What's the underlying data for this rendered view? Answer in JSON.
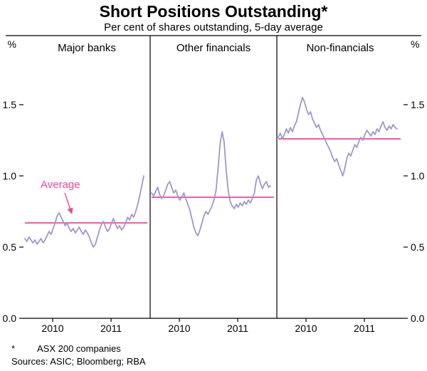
{
  "header": {
    "title": "Short Positions Outstanding*",
    "subtitle": "Per cent of shares outstanding, 5-day average"
  },
  "footer": {
    "marker": "*",
    "note": "ASX 200 companies",
    "sources": "Sources: ASIC; Bloomberg; RBA"
  },
  "colors": {
    "series": "#9b98cc",
    "average": "#f0459b",
    "axis": "#000000",
    "text": "#000000"
  },
  "chart_data": {
    "type": "line",
    "unit_left": "%",
    "unit_right": "%",
    "yticks": [
      0.0,
      0.5,
      1.0,
      1.5
    ],
    "ytick_labels": [
      "0.0",
      "0.5",
      "1.0",
      "1.5"
    ],
    "ylim": [
      0,
      1.96
    ],
    "x_range": [
      2009.5,
      2011.67
    ],
    "year_positions": [
      2010.0,
      2011.0
    ],
    "year_labels": [
      "2010",
      "2011"
    ],
    "annotation": {
      "text": "Average",
      "panel": 0
    },
    "panels": [
      {
        "label": "Major banks",
        "average": 0.67,
        "values": [
          0.56,
          0.54,
          0.57,
          0.55,
          0.53,
          0.55,
          0.52,
          0.54,
          0.56,
          0.53,
          0.55,
          0.58,
          0.61,
          0.59,
          0.63,
          0.67,
          0.72,
          0.74,
          0.71,
          0.68,
          0.65,
          0.67,
          0.63,
          0.61,
          0.63,
          0.6,
          0.62,
          0.64,
          0.61,
          0.59,
          0.62,
          0.6,
          0.57,
          0.53,
          0.5,
          0.52,
          0.57,
          0.62,
          0.66,
          0.68,
          0.64,
          0.61,
          0.63,
          0.67,
          0.7,
          0.66,
          0.63,
          0.65,
          0.62,
          0.64,
          0.67,
          0.71,
          0.69,
          0.73,
          0.71,
          0.75,
          0.8,
          0.86,
          0.93,
          1.0
        ]
      },
      {
        "label": "Other financials",
        "average": 0.85,
        "values": [
          0.88,
          0.86,
          0.89,
          0.92,
          0.87,
          0.84,
          0.86,
          0.9,
          0.94,
          0.96,
          0.92,
          0.88,
          0.9,
          0.86,
          0.83,
          0.85,
          0.88,
          0.84,
          0.8,
          0.76,
          0.7,
          0.64,
          0.6,
          0.58,
          0.62,
          0.67,
          0.72,
          0.75,
          0.73,
          0.76,
          0.79,
          0.83,
          0.9,
          1.05,
          1.22,
          1.31,
          1.24,
          1.05,
          0.9,
          0.82,
          0.79,
          0.77,
          0.8,
          0.78,
          0.81,
          0.79,
          0.82,
          0.8,
          0.83,
          0.81,
          0.84,
          0.88,
          0.97,
          1.0,
          0.95,
          0.91,
          0.94,
          0.96,
          0.92,
          0.93
        ]
      },
      {
        "label": "Non-financials",
        "average": 1.26,
        "values": [
          1.27,
          1.3,
          1.26,
          1.29,
          1.33,
          1.3,
          1.34,
          1.31,
          1.35,
          1.38,
          1.44,
          1.5,
          1.55,
          1.52,
          1.47,
          1.43,
          1.45,
          1.4,
          1.37,
          1.34,
          1.36,
          1.32,
          1.29,
          1.26,
          1.23,
          1.2,
          1.17,
          1.13,
          1.1,
          1.12,
          1.08,
          1.04,
          1.0,
          1.05,
          1.12,
          1.16,
          1.14,
          1.18,
          1.22,
          1.2,
          1.24,
          1.27,
          1.25,
          1.29,
          1.32,
          1.3,
          1.28,
          1.31,
          1.29,
          1.33,
          1.31,
          1.35,
          1.38,
          1.34,
          1.32,
          1.35,
          1.33,
          1.36,
          1.34,
          1.33
        ]
      }
    ]
  }
}
